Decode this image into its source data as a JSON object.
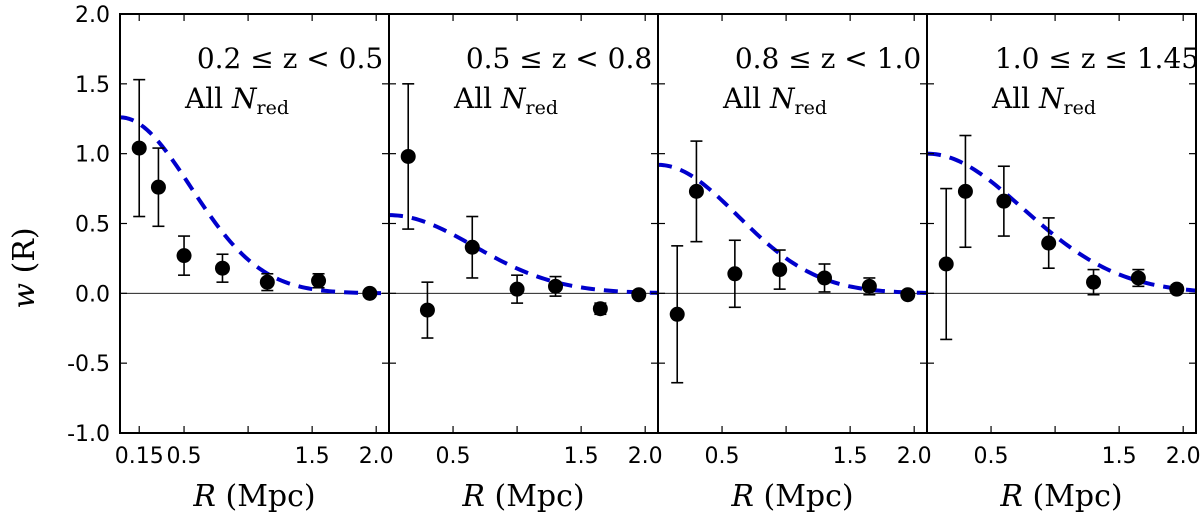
{
  "chart_data": {
    "type": "scatter",
    "ylabel": "w (R)",
    "ylabel_var": "w",
    "ylabel_rest": " (R)",
    "ylim": [
      -1.0,
      2.0
    ],
    "yticks": [
      -1.0,
      -0.5,
      0.0,
      0.5,
      1.0,
      1.5,
      2.0
    ],
    "ytick_labels": [
      "-1.0",
      "-0.5",
      "0.0",
      "0.5",
      "1.0",
      "1.5",
      "2.0"
    ],
    "xlim": [
      0.0,
      2.1
    ],
    "colors": {
      "data": "#000000",
      "model": "#0000cc",
      "zero_line": "#000000"
    },
    "panels": [
      {
        "label": "0.2 ≤ z < 0.5",
        "subtitle_prefix": "All ",
        "subtitle_var": "N",
        "subtitle_sub": "red",
        "xlabel_var": "R",
        "xlabel_rest": " (Mpc)",
        "xticks": [
          0.15,
          0.5,
          1.0,
          1.5,
          2.0
        ],
        "xtick_labels": [
          "0.15",
          "0.5",
          "",
          "1.5",
          "2.0"
        ],
        "points": [
          {
            "x": 0.15,
            "y": 1.04,
            "err": 0.49
          },
          {
            "x": 0.3,
            "y": 0.76,
            "err": 0.28
          },
          {
            "x": 0.5,
            "y": 0.27,
            "err": 0.14
          },
          {
            "x": 0.8,
            "y": 0.18,
            "err": 0.1
          },
          {
            "x": 1.15,
            "y": 0.08,
            "err": 0.06
          },
          {
            "x": 1.55,
            "y": 0.09,
            "err": 0.05
          },
          {
            "x": 1.95,
            "y": 0.0,
            "err": 0.0
          }
        ],
        "model": {
          "amplitude": 1.26,
          "scale": 0.55
        }
      },
      {
        "label": "0.5 ≤ z < 0.8",
        "subtitle_prefix": "All ",
        "subtitle_var": "N",
        "subtitle_sub": "red",
        "xlabel_var": "R",
        "xlabel_rest": " (Mpc)",
        "xticks": [
          0.5,
          1.0,
          1.5,
          2.0
        ],
        "xtick_labels": [
          "0.5",
          "",
          "1.5",
          "2.0"
        ],
        "points": [
          {
            "x": 0.15,
            "y": 0.98,
            "err": 0.52
          },
          {
            "x": 0.3,
            "y": -0.12,
            "err": 0.2
          },
          {
            "x": 0.65,
            "y": 0.33,
            "err": 0.22
          },
          {
            "x": 1.0,
            "y": 0.03,
            "err": 0.1
          },
          {
            "x": 1.3,
            "y": 0.05,
            "err": 0.07
          },
          {
            "x": 1.65,
            "y": -0.11,
            "err": 0.04
          },
          {
            "x": 1.95,
            "y": -0.01,
            "err": 0.02
          }
        ],
        "model": {
          "amplitude": 0.56,
          "scale": 0.66
        }
      },
      {
        "label": "0.8 ≤ z < 1.0",
        "subtitle_prefix": "All ",
        "subtitle_var": "N",
        "subtitle_sub": "red",
        "xlabel_var": "R",
        "xlabel_rest": " (Mpc)",
        "xticks": [
          0.5,
          1.0,
          1.5,
          2.0
        ],
        "xtick_labels": [
          "0.5",
          "",
          "1.5",
          "2.0"
        ],
        "points": [
          {
            "x": 0.15,
            "y": -0.15,
            "err": 0.49
          },
          {
            "x": 0.3,
            "y": 0.73,
            "err": 0.36
          },
          {
            "x": 0.6,
            "y": 0.14,
            "err": 0.24
          },
          {
            "x": 0.95,
            "y": 0.17,
            "err": 0.14
          },
          {
            "x": 1.3,
            "y": 0.11,
            "err": 0.1
          },
          {
            "x": 1.65,
            "y": 0.05,
            "err": 0.06
          },
          {
            "x": 1.95,
            "y": -0.01,
            "err": 0.02
          }
        ],
        "model": {
          "amplitude": 0.92,
          "scale": 0.62
        }
      },
      {
        "label": "1.0 ≤ z ≤ 1.45",
        "subtitle_prefix": "All ",
        "subtitle_var": "N",
        "subtitle_sub": "red",
        "xlabel_var": "R",
        "xlabel_rest": " (Mpc)",
        "xticks": [
          0.5,
          1.0,
          1.5,
          2.0
        ],
        "xtick_labels": [
          "0.5",
          "",
          "1.5",
          "2.0"
        ],
        "points": [
          {
            "x": 0.15,
            "y": 0.21,
            "err": 0.54
          },
          {
            "x": 0.3,
            "y": 0.73,
            "err": 0.4
          },
          {
            "x": 0.6,
            "y": 0.66,
            "err": 0.25
          },
          {
            "x": 0.95,
            "y": 0.36,
            "err": 0.18
          },
          {
            "x": 1.3,
            "y": 0.08,
            "err": 0.09
          },
          {
            "x": 1.65,
            "y": 0.11,
            "err": 0.06
          },
          {
            "x": 1.95,
            "y": 0.03,
            "err": 0.03
          }
        ],
        "model": {
          "amplitude": 1.0,
          "scale": 0.75
        }
      }
    ]
  }
}
